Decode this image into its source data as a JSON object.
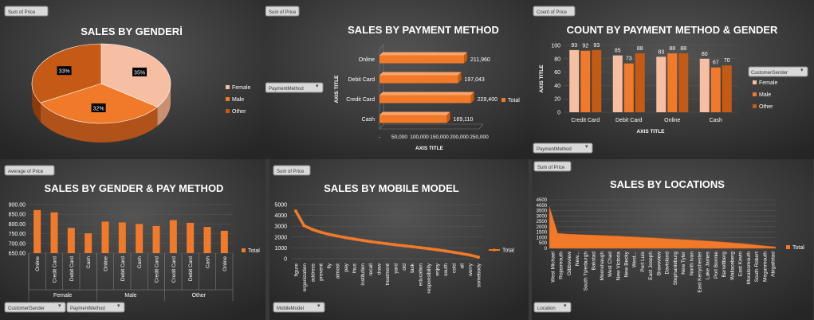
{
  "colors": {
    "orange": "#F07A2A",
    "orange_dark": "#C45A15",
    "peach": "#F6BFA3",
    "panel": "#3a3a3a",
    "text": "#ffffff"
  },
  "panels": {
    "gender": {
      "field_button": "Sum of Price",
      "title": "SALES BY GENDERİ",
      "legend": [
        "Female",
        "Male",
        "Other"
      ],
      "chart_data": {
        "type": "pie",
        "title": "SALES BY GENDERİ",
        "categories": [
          "Female",
          "Male",
          "Other"
        ],
        "values": [
          35,
          32,
          33
        ],
        "data_labels": [
          "35%",
          "32%",
          "33%"
        ],
        "legend_position": "right"
      }
    },
    "payment": {
      "field_button": "Sum of Price",
      "filter_button": "PaymentMethod",
      "title": "SALES BY PAYMENT METHOD",
      "legend": "Total",
      "chart_data": {
        "type": "bar",
        "orientation": "horizontal",
        "title": "SALES BY PAYMENT METHOD",
        "categories": [
          "Cash",
          "Credit Card",
          "Debit Card",
          "Online"
        ],
        "series": [
          {
            "name": "Total",
            "values": [
              169110,
              229400,
              197043,
              211960
            ]
          }
        ],
        "data_labels": [
          "169,110",
          "229,400",
          "197,043",
          "211,960"
        ],
        "xlabel": "AXIS TITLE",
        "ylabel": "AXIS TITLE",
        "xlim": [
          0,
          250000
        ],
        "xticks": [
          "-",
          "50,000",
          "100,000",
          "150,000",
          "200,000",
          "250,000"
        ],
        "legend_position": "right"
      }
    },
    "count": {
      "field_button": "Count of Price",
      "filter_button": "PaymentMethod",
      "legend_title": "CustomerGender",
      "title": "COUNT BY PAYMENT METHOD & GENDER",
      "legend": [
        "Female",
        "Male",
        "Other"
      ],
      "chart_data": {
        "type": "bar",
        "title": "COUNT BY PAYMENT METHOD & GENDER",
        "categories": [
          "Credit Card",
          "Debit Card",
          "Online",
          "Cash"
        ],
        "series": [
          {
            "name": "Female",
            "values": [
              93,
              85,
              83,
              80
            ]
          },
          {
            "name": "Male",
            "values": [
              92,
              73,
              88,
              67
            ]
          },
          {
            "name": "Other",
            "values": [
              93,
              88,
              88,
              70
            ]
          }
        ],
        "xlabel": "AXIS TITLE",
        "ylabel": "AXIS TITLE",
        "ylim": [
          0,
          100
        ],
        "yticks": [
          "0",
          "20",
          "40",
          "60",
          "80",
          "100"
        ],
        "legend_position": "right"
      }
    },
    "gender_pay": {
      "field_button": "Average of Price",
      "filter_buttons": [
        "CustomerGender",
        "PaymentMethod"
      ],
      "title": "SALES BY GENDER & PAY METHOD",
      "legend": "Total",
      "chart_data": {
        "type": "bar",
        "title": "SALES BY GENDER & PAY METHOD",
        "groups": [
          {
            "name": "Female",
            "categories": [
              "Online",
              "Credit Card",
              "Debit Card",
              "Cash"
            ],
            "values": [
              872,
              860,
              780,
              752
            ]
          },
          {
            "name": "Male",
            "categories": [
              "Online",
              "Debit Card",
              "Cash",
              "Credit Card"
            ],
            "values": [
              812,
              808,
              800,
              790
            ]
          },
          {
            "name": "Other",
            "categories": [
              "Credit Card",
              "Debit Card",
              "Cash",
              "Online"
            ],
            "values": [
              820,
              806,
              785,
              765
            ]
          }
        ],
        "series": [
          {
            "name": "Total"
          }
        ],
        "ylim": [
          650,
          900
        ],
        "yticks": [
          "650.00",
          "700.00",
          "750.00",
          "800.00",
          "850.00",
          "900.00"
        ],
        "legend_position": "right"
      }
    },
    "mobile": {
      "field_button": "Sum of Price",
      "filter_button": "MobileModel",
      "title": "SALES BY MOBILE MODEL",
      "legend": "Total",
      "chart_data": {
        "type": "line",
        "title": "SALES BY MOBILE MODEL",
        "categories": [
          "figure",
          "organization",
          "address",
          "prevent",
          "fly",
          "almost",
          "pay",
          "thus",
          "institution",
          "recall",
          "draw",
          "treatment",
          "yard",
          "old",
          "task",
          "education",
          "responsibility",
          "enjoy",
          "south",
          "cold",
          "all",
          "worry",
          "somebody"
        ],
        "series": [
          {
            "name": "Total",
            "values": [
              4400,
              3050,
              2700,
              2450,
              2250,
              2100,
              1950,
              1820,
              1700,
              1580,
              1480,
              1380,
              1290,
              1200,
              1110,
              1020,
              930,
              830,
              720,
              600,
              470,
              330,
              150
            ]
          }
        ],
        "ylim": [
          0,
          5000
        ],
        "yticks": [
          "0",
          "1000",
          "2000",
          "3000",
          "4000",
          "5000"
        ],
        "legend_position": "right"
      }
    },
    "locations": {
      "field_button": "Sum of Price",
      "filter_button": "Location",
      "title": "SALES BY LOCATIONS",
      "legend": "Total",
      "chart_data": {
        "type": "area",
        "title": "SALES BY LOCATIONS",
        "categories": [
          "West Michael",
          "Rojasmouth",
          "Gibbsview",
          "New...",
          "South Tylerburgh",
          "Bakstad",
          "Moorehaugh",
          "West Chad",
          "New Victoria",
          "New Becky",
          "West...",
          "Port Luis",
          "East Joseph",
          "Bravoview",
          "Davisland",
          "Stephanieburg",
          "New Tyler",
          "North Ivan",
          "East Kerrychester",
          "Lake James",
          "Port Bonnie",
          "Barrettberg",
          "Wallaceberg",
          "East Kevin",
          "Moralesmouth",
          "South Robert",
          "Meganmouth",
          "Abigailstad"
        ],
        "series": [
          {
            "name": "Total",
            "values": [
              3900,
              1400,
              1340,
              1300,
              1270,
              1240,
              1210,
              1180,
              1150,
              1110,
              1070,
              1030,
              990,
              950,
              900,
              860,
              820,
              780,
              730,
              680,
              630,
              570,
              510,
              440,
              370,
              290,
              210,
              140
            ]
          }
        ],
        "ylim": [
          0,
          4500
        ],
        "yticks": [
          "0",
          "500",
          "1000",
          "1500",
          "2000",
          "2500",
          "3000",
          "3500",
          "4000",
          "4500"
        ],
        "legend_position": "right"
      }
    }
  }
}
